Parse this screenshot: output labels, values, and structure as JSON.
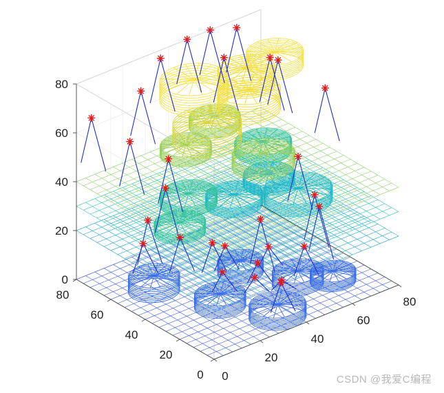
{
  "watermark": "CSDN @我爱C编程",
  "chart_data": {
    "type": "scatter",
    "subtype": "3d-layered-terrain",
    "title": "",
    "xlabel": "",
    "ylabel": "",
    "zlabel": "",
    "xlim": [
      0,
      80
    ],
    "ylim": [
      0,
      80
    ],
    "zlim": [
      0,
      80
    ],
    "ticks": {
      "x": [
        "0",
        "20",
        "40",
        "60",
        "80"
      ],
      "y": [
        "0",
        "20",
        "40",
        "60",
        "80"
      ],
      "z": [
        "0",
        "20",
        "40",
        "60",
        "80"
      ]
    },
    "grid": true,
    "colormap": [
      "#3b5bdb",
      "#1aa3c9",
      "#2cc3a8",
      "#8fd16b",
      "#f5e24b"
    ],
    "layers": [
      {
        "z": 0,
        "grid_color": "#3b5bdb"
      },
      {
        "z": 20,
        "grid_color": "#1aa3c9"
      },
      {
        "z": 30,
        "grid_color": "#2cc3a8"
      },
      {
        "z": 40,
        "grid_color": "#8fd16b"
      }
    ],
    "cylinders": [
      {
        "x": 55,
        "y": 25,
        "z0": 0,
        "z1": 5,
        "r": 9,
        "color": "#3b6ee8"
      },
      {
        "x": 35,
        "y": 10,
        "z0": 0,
        "z1": 5,
        "r": 10,
        "color": "#3b6ee8"
      },
      {
        "x": 65,
        "y": 18,
        "z0": 0,
        "z1": 4,
        "r": 8,
        "color": "#3b6ee8"
      },
      {
        "x": 15,
        "y": 55,
        "z0": 0,
        "z1": 6,
        "r": 9,
        "color": "#3b6ee8"
      },
      {
        "x": 45,
        "y": 45,
        "z0": 0,
        "z1": 5,
        "r": 8,
        "color": "#3b6ee8"
      },
      {
        "x": 25,
        "y": 30,
        "z0": 0,
        "z1": 5,
        "r": 9,
        "color": "#3b6ee8"
      },
      {
        "x": 70,
        "y": 45,
        "z0": 20,
        "z1": 25,
        "r": 12,
        "color": "#1fb8c9"
      },
      {
        "x": 52,
        "y": 58,
        "z0": 20,
        "z1": 24,
        "r": 10,
        "color": "#1fb8c9"
      },
      {
        "x": 70,
        "y": 62,
        "z0": 20,
        "z1": 24,
        "r": 9,
        "color": "#1fb8c9"
      },
      {
        "x": 30,
        "y": 55,
        "z0": 30,
        "z1": 34,
        "r": 10,
        "color": "#35c39d"
      },
      {
        "x": 15,
        "y": 40,
        "z0": 30,
        "z1": 34,
        "r": 9,
        "color": "#35c39d"
      },
      {
        "x": 72,
        "y": 68,
        "z0": 30,
        "z1": 34,
        "r": 10,
        "color": "#35c39d"
      },
      {
        "x": 55,
        "y": 45,
        "z0": 40,
        "z1": 45,
        "r": 11,
        "color": "#9bcf5a"
      },
      {
        "x": 40,
        "y": 70,
        "z0": 40,
        "z1": 44,
        "r": 9,
        "color": "#9bcf5a"
      },
      {
        "x": 60,
        "y": 80,
        "z0": 40,
        "z1": 44,
        "r": 9,
        "color": "#9bcf5a"
      },
      {
        "x": 38,
        "y": 55,
        "z0": 52,
        "z1": 60,
        "r": 12,
        "color": "#d8d63d"
      },
      {
        "x": 60,
        "y": 60,
        "z0": 55,
        "z1": 63,
        "r": 11,
        "color": "#f0dc3a"
      },
      {
        "x": 70,
        "y": 75,
        "z0": 55,
        "z1": 62,
        "r": 10,
        "color": "#f0dc3a"
      },
      {
        "x": 45,
        "y": 72,
        "z0": 60,
        "z1": 68,
        "r": 12,
        "color": "#f5e24b"
      },
      {
        "x": 80,
        "y": 72,
        "z0": 60,
        "z1": 66,
        "r": 10,
        "color": "#f5e24b"
      }
    ],
    "markers": [
      {
        "x": 5,
        "y": 78,
        "z": 65
      },
      {
        "x": 12,
        "y": 65,
        "z": 58
      },
      {
        "x": 22,
        "y": 72,
        "z": 72
      },
      {
        "x": 35,
        "y": 78,
        "z": 78
      },
      {
        "x": 48,
        "y": 80,
        "z": 80
      },
      {
        "x": 58,
        "y": 80,
        "z": 80
      },
      {
        "x": 68,
        "y": 78,
        "z": 78
      },
      {
        "x": 58,
        "y": 72,
        "z": 72
      },
      {
        "x": 72,
        "y": 64,
        "z": 70
      },
      {
        "x": 74,
        "y": 62,
        "z": 69
      },
      {
        "x": 78,
        "y": 40,
        "z": 65
      },
      {
        "x": 25,
        "y": 60,
        "z": 48
      },
      {
        "x": 20,
        "y": 55,
        "z": 40
      },
      {
        "x": 70,
        "y": 45,
        "z": 38
      },
      {
        "x": 66,
        "y": 30,
        "z": 30
      },
      {
        "x": 62,
        "y": 22,
        "z": 30
      },
      {
        "x": 50,
        "y": 40,
        "z": 22
      },
      {
        "x": 25,
        "y": 72,
        "z": 18
      },
      {
        "x": 20,
        "y": 68,
        "z": 12
      },
      {
        "x": 30,
        "y": 60,
        "z": 14
      },
      {
        "x": 38,
        "y": 52,
        "z": 12
      },
      {
        "x": 42,
        "y": 50,
        "z": 10
      },
      {
        "x": 55,
        "y": 42,
        "z": 8
      },
      {
        "x": 45,
        "y": 35,
        "z": 8
      },
      {
        "x": 40,
        "y": 30,
        "z": 6
      },
      {
        "x": 48,
        "y": 25,
        "z": 4
      },
      {
        "x": 32,
        "y": 38,
        "z": 8
      },
      {
        "x": 60,
        "y": 28,
        "z": 12
      },
      {
        "x": 38,
        "y": 12,
        "z": 12
      }
    ]
  }
}
